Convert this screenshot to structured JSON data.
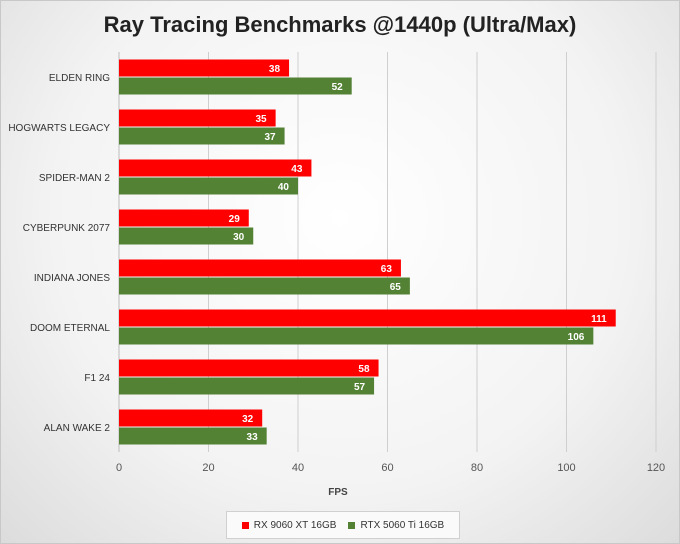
{
  "chart_data": {
    "type": "bar",
    "orientation": "horizontal",
    "title": "Ray Tracing Benchmarks @1440p (Ultra/Max)",
    "xlabel": "FPS",
    "ylabel": "",
    "xlim": [
      0,
      120
    ],
    "xticks": [
      0,
      20,
      40,
      60,
      80,
      100,
      120
    ],
    "grid": true,
    "legend_position": "bottom",
    "categories": [
      "ELDEN RING",
      "HOGWARTS LEGACY",
      "SPIDER-MAN 2",
      "CYBERPUNK 2077",
      "INDIANA JONES",
      "DOOM ETERNAL",
      "F1 24",
      "ALAN WAKE 2"
    ],
    "series": [
      {
        "name": "RX 9060 XT 16GB",
        "color": "#ff0000",
        "values": [
          38,
          35,
          43,
          29,
          63,
          111,
          58,
          32
        ]
      },
      {
        "name": "RTX 5060 Ti 16GB",
        "color": "#548235",
        "values": [
          52,
          37,
          40,
          30,
          65,
          106,
          57,
          33
        ]
      }
    ]
  }
}
